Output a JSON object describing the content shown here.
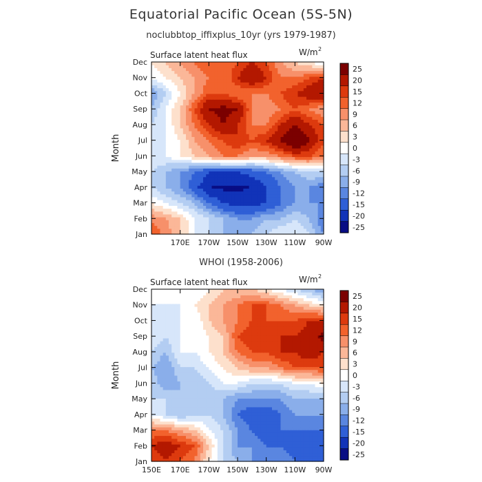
{
  "figure": {
    "title": "Equatorial Pacific Ocean (5S-5N)"
  },
  "colorbar": {
    "levels": [
      "25",
      "20",
      "15",
      "12",
      "9",
      "6",
      "3",
      "0",
      "-3",
      "-6",
      "-9",
      "-12",
      "-15",
      "-20",
      "-25"
    ],
    "colors": [
      "#7b0000",
      "#b31800",
      "#dd3a0e",
      "#f2622d",
      "#f7906a",
      "#fbb798",
      "#fde0cc",
      "#ffffff",
      "#d7e6fa",
      "#b3cdf2",
      "#8aaeea",
      "#5a86e0",
      "#2f5fd6",
      "#1133b8",
      "#080d84"
    ]
  },
  "chart_data": [
    {
      "type": "heatmap",
      "name": "model",
      "subtitle": "noclubbtop_iffixplus_10yr (yrs 1979-1987)",
      "panel_label": "Surface latent heat flux",
      "units_label": "W/m",
      "units_sup": "2",
      "ylabel": "Month",
      "y_ticks": [
        "Jan",
        "Feb",
        "Mar",
        "Apr",
        "May",
        "Jun",
        "Jul",
        "Aug",
        "Sep",
        "Oct",
        "Nov",
        "Dec"
      ],
      "x_ticks": [
        "",
        "170E",
        "170W",
        "150W",
        "130W",
        "110W",
        "90W"
      ],
      "x_range": [
        "150E",
        "90W"
      ],
      "months": [
        "Jan",
        "Feb",
        "Mar",
        "Apr",
        "May",
        "Jun",
        "Jul",
        "Aug",
        "Sep",
        "Oct",
        "Nov",
        "Dec"
      ],
      "lon_columns": [
        "150E",
        "160E",
        "170E",
        "180",
        "170W",
        "160W",
        "150W",
        "140W",
        "130W",
        "120W",
        "110W",
        "100W",
        "90W"
      ],
      "values": [
        [
          12,
          8,
          3,
          -3,
          -6,
          -9,
          -9,
          -9,
          -6,
          -3,
          -3,
          -6,
          -12
        ],
        [
          8,
          6,
          3,
          -3,
          -6,
          -9,
          -12,
          -12,
          -9,
          -9,
          -6,
          -9,
          -15
        ],
        [
          0,
          -3,
          -6,
          -9,
          -15,
          -20,
          -22,
          -22,
          -20,
          -15,
          -12,
          -12,
          -12
        ],
        [
          -6,
          -9,
          -12,
          -18,
          -25,
          -26,
          -26,
          -25,
          -20,
          -15,
          -12,
          -12,
          -15
        ],
        [
          -6,
          -9,
          -12,
          -15,
          -20,
          -20,
          -20,
          -18,
          -15,
          -12,
          -9,
          -6,
          -6
        ],
        [
          -3,
          -3,
          0,
          3,
          6,
          9,
          9,
          6,
          6,
          9,
          12,
          12,
          9
        ],
        [
          -6,
          -3,
          0,
          6,
          9,
          12,
          15,
          12,
          15,
          20,
          28,
          20,
          12
        ],
        [
          -6,
          -3,
          3,
          9,
          15,
          20,
          15,
          9,
          9,
          15,
          20,
          15,
          12
        ],
        [
          -9,
          -3,
          3,
          12,
          20,
          22,
          20,
          9,
          6,
          9,
          12,
          9,
          6
        ],
        [
          -12,
          -6,
          0,
          6,
          12,
          12,
          9,
          9,
          9,
          12,
          15,
          18,
          20
        ],
        [
          -3,
          0,
          3,
          6,
          9,
          9,
          15,
          20,
          15,
          9,
          9,
          12,
          15
        ],
        [
          0,
          3,
          6,
          9,
          12,
          9,
          12,
          15,
          12,
          6,
          3,
          0,
          -3
        ]
      ]
    },
    {
      "type": "heatmap",
      "name": "observations",
      "subtitle": "WHOI (1958-2006)",
      "panel_label": "Surface latent heat flux",
      "units_label": "W/m",
      "units_sup": "2",
      "ylabel": "Month",
      "y_ticks": [
        "Jan",
        "Feb",
        "Mar",
        "Apr",
        "May",
        "Jun",
        "Jul",
        "Aug",
        "Sep",
        "Oct",
        "Nov",
        "Dec"
      ],
      "x_ticks": [
        "150E",
        "170E",
        "170W",
        "150W",
        "130W",
        "110W",
        "90W"
      ],
      "x_range": [
        "150E",
        "90W"
      ],
      "months": [
        "Jan",
        "Feb",
        "Mar",
        "Apr",
        "May",
        "Jun",
        "Jul",
        "Aug",
        "Sep",
        "Oct",
        "Nov",
        "Dec"
      ],
      "lon_columns": [
        "150E",
        "160E",
        "170E",
        "180",
        "170W",
        "160W",
        "150W",
        "140W",
        "130W",
        "120W",
        "110W",
        "100W",
        "90W"
      ],
      "values": [
        [
          12,
          15,
          12,
          9,
          0,
          -6,
          -9,
          -12,
          -12,
          -12,
          -15,
          -20,
          -20
        ],
        [
          15,
          18,
          15,
          12,
          3,
          -6,
          -12,
          -12,
          -15,
          -15,
          -18,
          -15,
          -18
        ],
        [
          9,
          9,
          6,
          3,
          -3,
          -6,
          -12,
          -15,
          -18,
          -15,
          -15,
          -15,
          -15
        ],
        [
          -3,
          -6,
          -9,
          -6,
          -6,
          -9,
          -15,
          -18,
          -18,
          -15,
          -12,
          -12,
          -12
        ],
        [
          -6,
          -6,
          -9,
          -9,
          -9,
          -9,
          -12,
          -12,
          -12,
          -12,
          -9,
          -9,
          -9
        ],
        [
          -6,
          -12,
          -9,
          -9,
          -6,
          -3,
          -3,
          -6,
          -6,
          -6,
          -3,
          -3,
          0
        ],
        [
          -9,
          -12,
          -6,
          -6,
          -3,
          0,
          3,
          6,
          6,
          9,
          12,
          12,
          12
        ],
        [
          -6,
          -9,
          -3,
          -3,
          0,
          3,
          9,
          12,
          12,
          15,
          15,
          18,
          15
        ],
        [
          -3,
          -6,
          -3,
          -3,
          0,
          3,
          12,
          15,
          12,
          15,
          15,
          18,
          22
        ],
        [
          -6,
          -6,
          -3,
          -3,
          3,
          6,
          9,
          12,
          12,
          12,
          12,
          15,
          15
        ],
        [
          -3,
          -3,
          -3,
          0,
          3,
          6,
          9,
          12,
          12,
          9,
          6,
          3,
          0
        ],
        [
          -3,
          -3,
          -3,
          -3,
          0,
          3,
          3,
          3,
          0,
          -3,
          -6,
          -9,
          -12
        ]
      ]
    }
  ]
}
